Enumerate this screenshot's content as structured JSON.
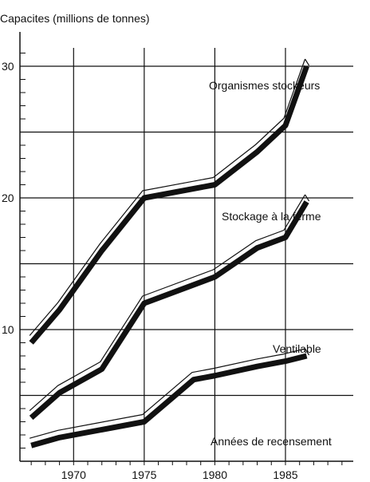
{
  "chart_data": {
    "type": "line",
    "title": "",
    "ylabel": "Capacites (millions de tonnes)",
    "xlabel": "Années de recensement",
    "x_ticks": [
      1970,
      1975,
      1980,
      1985
    ],
    "y_ticks": [
      10,
      20,
      30
    ],
    "xlim": [
      1966.2,
      1989.8
    ],
    "ylim": [
      0,
      32
    ],
    "grid": true,
    "series": [
      {
        "name": "Organismes stockeurs",
        "x": [
          1967,
          1969,
          1972,
          1975,
          1980,
          1983,
          1985,
          1986.5
        ],
        "y": [
          9,
          11.5,
          16,
          20,
          21,
          23.5,
          25.5,
          30
        ]
      },
      {
        "name": "Stockage à la ferme",
        "x": [
          1967,
          1969,
          1972,
          1975,
          1980,
          1983,
          1985,
          1986.5
        ],
        "y": [
          3.3,
          5.2,
          7,
          12,
          14,
          16.2,
          17,
          19.7
        ]
      },
      {
        "name": "Ventilable",
        "x": [
          1967,
          1969,
          1972,
          1975,
          1978.5,
          1980,
          1983,
          1985,
          1986.5
        ],
        "y": [
          1.2,
          1.8,
          2.4,
          3,
          6.2,
          6.5,
          7.2,
          7.6,
          8
        ]
      }
    ]
  },
  "colors": {
    "ink": "#111111",
    "background": "#ffffff"
  }
}
